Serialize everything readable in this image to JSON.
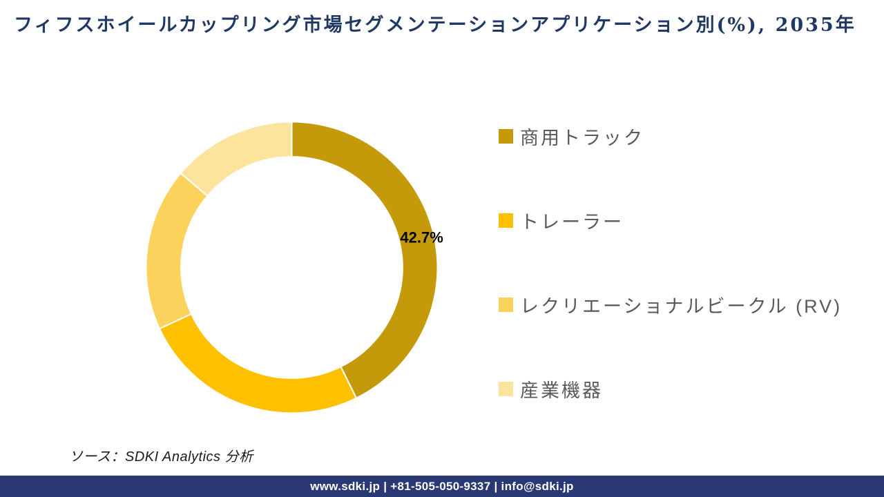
{
  "title": "フィフスホイールカップリング市場セグメンテーションアプリケーション別(%), 2035年",
  "chart_data": {
    "type": "pie",
    "subtype": "donut",
    "title": "フィフスホイールカップリング市場セグメンテーションアプリケーション別(%), 2035年",
    "categories": [
      "商用トラック",
      "トレーラー",
      "レクリエーショナルビークル (RV)",
      "産業機器"
    ],
    "values": [
      42.7,
      25.4,
      18.1,
      13.8
    ],
    "colors": [
      "#C49A0A",
      "#FFC000",
      "#FBD35C",
      "#FCE49C"
    ],
    "data_label": {
      "text": "42.7%",
      "segment_index": 0
    },
    "start_angle_deg": 0,
    "direction": "clockwise",
    "inner_radius_ratio": 0.76,
    "separator_color": "#ffffff",
    "legend_position": "right"
  },
  "source_note": "ソース：SDKI Analytics  分析",
  "footer": {
    "text": "www.sdki.jp | +81-505-050-9337 | info@sdki.jp"
  },
  "colors": {
    "title_text": "#203864",
    "legend_text": "#595959",
    "data_label_text": "#000000",
    "footer_background": "#2A3874",
    "footer_text": "#ffffff",
    "background": "#ffffff"
  }
}
